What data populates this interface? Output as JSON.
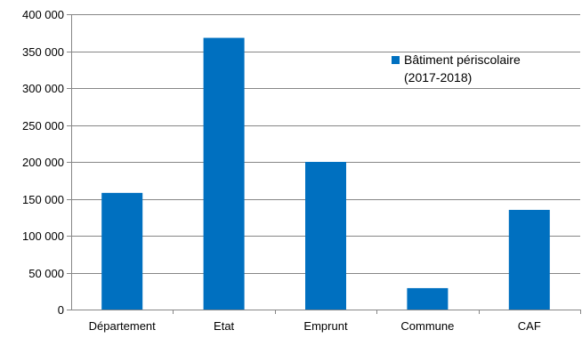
{
  "chart_data": {
    "type": "bar",
    "title": "",
    "xlabel": "",
    "ylabel": "",
    "categories": [
      "Département",
      "Etat",
      "Emprunt",
      "Commune",
      "CAF"
    ],
    "series": [
      {
        "name": "Bâtiment périscolaire (2017-2018)",
        "legend_lines": [
          "Bâtiment périscolaire",
          "(2017-2018)"
        ],
        "color": "#0070C0",
        "values": [
          158000,
          368000,
          200000,
          29000,
          135000
        ]
      }
    ],
    "ylim": [
      0,
      400000
    ],
    "y_ticks": [
      0,
      50000,
      100000,
      150000,
      200000,
      250000,
      300000,
      350000,
      400000
    ],
    "y_tick_labels": [
      "0",
      "50 000",
      "100 000",
      "150 000",
      "200 000",
      "250 000",
      "300 000",
      "350 000",
      "400 000"
    ],
    "grid": true,
    "legend_position": "top-right"
  }
}
